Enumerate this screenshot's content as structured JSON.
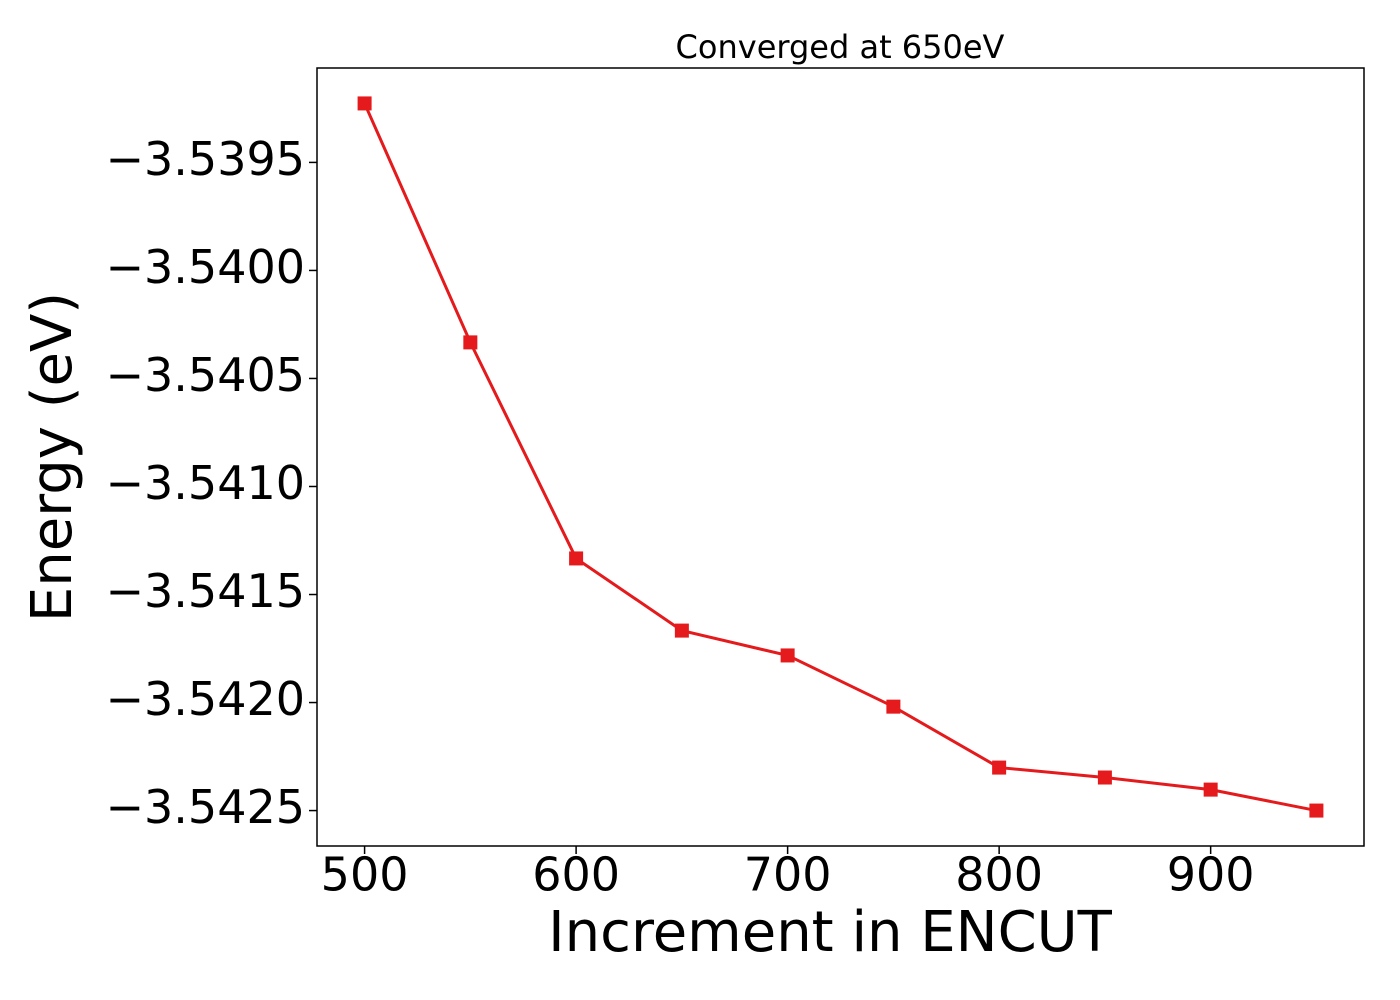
{
  "chart_data": {
    "type": "line",
    "title": "Converged at 650eV",
    "x_label": "Increment in ENCUT",
    "y_label": "Energy (eV)",
    "x": [
      500,
      550,
      600,
      650,
      700,
      750,
      800,
      850,
      900,
      950
    ],
    "series": [
      {
        "name": "Energy",
        "color": "#e41a1c",
        "marker": "square",
        "values": [
          -3.539227,
          -3.540333,
          -3.541333,
          -3.541667,
          -3.541782,
          -3.542019,
          -3.542301,
          -3.542347,
          -3.542403,
          -3.5425
        ]
      }
    ],
    "xlim": [
      477.5,
      972.5
    ],
    "xticks": [
      500,
      600,
      700,
      800,
      900
    ],
    "ylim": [
      -3.542664,
      -3.539063
    ],
    "yticks": [
      {
        "value": -3.5395,
        "label": "−3.5395"
      },
      {
        "value": -3.54,
        "label": "−3.5400"
      },
      {
        "value": -3.5405,
        "label": "−3.5405"
      },
      {
        "value": -3.541,
        "label": "−3.5410"
      },
      {
        "value": -3.5415,
        "label": "−3.5415"
      },
      {
        "value": -3.542,
        "label": "−3.5420"
      },
      {
        "value": -3.5425,
        "label": "−3.5425"
      }
    ],
    "grid": false
  }
}
